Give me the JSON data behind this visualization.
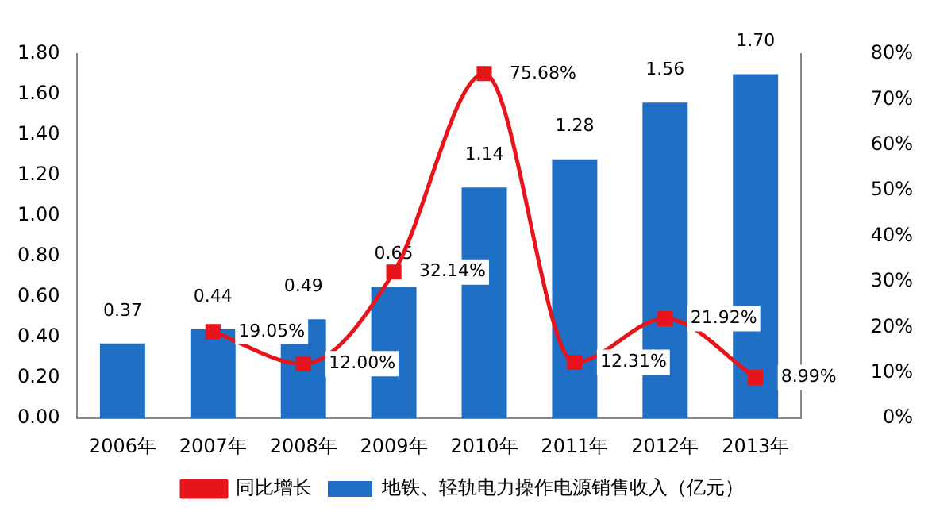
{
  "chart_data": {
    "type": "bar",
    "categories": [
      "2006年",
      "2007年",
      "2008年",
      "2009年",
      "2010年",
      "2011年",
      "2012年",
      "2013年"
    ],
    "series": [
      {
        "name": "地铁、轻轨电力操作电源销售收入（亿元）",
        "color": "#1f6fc5",
        "values": [
          0.37,
          0.44,
          0.49,
          0.65,
          1.14,
          1.28,
          1.56,
          1.7
        ],
        "value_labels": [
          "0.37",
          "0.44",
          "0.49",
          "0.65",
          "1.14",
          "1.28",
          "1.56",
          "1.70"
        ]
      },
      {
        "name": "同比增长",
        "type": "line",
        "axis": "y2",
        "color": "#e8141b",
        "marker": "square",
        "values": [
          null,
          19.05,
          12.0,
          32.14,
          75.68,
          12.31,
          21.92,
          8.99
        ],
        "value_labels": [
          null,
          "19.05%",
          "12.00%",
          "32.14%",
          "75.68%",
          "12.31%",
          "21.92%",
          "8.99%"
        ]
      }
    ],
    "ylim": [
      0,
      1.8
    ],
    "yticks": [
      {
        "value": 0,
        "label": "0.00"
      },
      {
        "value": 0.2,
        "label": "0.20"
      },
      {
        "value": 0.4,
        "label": "0.40"
      },
      {
        "value": 0.6,
        "label": "0.60"
      },
      {
        "value": 0.8,
        "label": "0.80"
      },
      {
        "value": 1.0,
        "label": "1.00"
      },
      {
        "value": 1.2,
        "label": "1.20"
      },
      {
        "value": 1.4,
        "label": "1.40"
      },
      {
        "value": 1.6,
        "label": "1.60"
      },
      {
        "value": 1.8,
        "label": "1.80"
      }
    ],
    "y2lim": [
      0,
      80
    ],
    "y2ticks": [
      {
        "value": 0,
        "label": "0%"
      },
      {
        "value": 10,
        "label": "10%"
      },
      {
        "value": 20,
        "label": "20%"
      },
      {
        "value": 30,
        "label": "30%"
      },
      {
        "value": 40,
        "label": "40%"
      },
      {
        "value": 50,
        "label": "50%"
      },
      {
        "value": 60,
        "label": "60%"
      },
      {
        "value": 70,
        "label": "70%"
      },
      {
        "value": 80,
        "label": "80%"
      }
    ],
    "grid": false,
    "legend": "bottom"
  }
}
